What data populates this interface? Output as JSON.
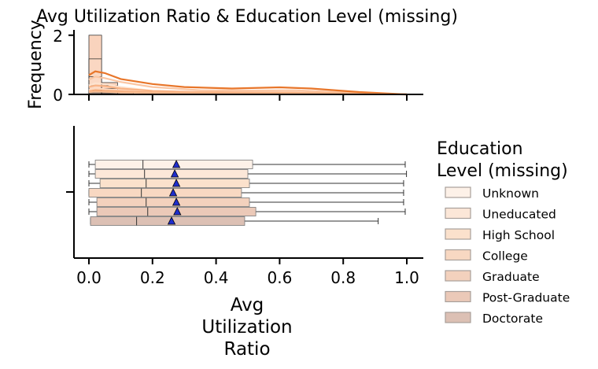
{
  "chart_data": {
    "type": "histogram+boxplot",
    "title": "Avg Utilization Ratio & Education Level (missing)",
    "histogram": {
      "ylabel": "Frequency",
      "ylim": [
        0,
        2.1
      ],
      "yticks": [
        "0",
        "2"
      ],
      "bins": [
        {
          "x0": 0.0,
          "x1": 0.04,
          "stack": [
            0.05,
            0.1,
            0.15,
            0.3,
            0.6,
            1.2,
            2.0
          ]
        },
        {
          "x0": 0.04,
          "x1": 0.09,
          "stack": [
            0.02,
            0.05,
            0.1,
            0.2,
            0.3,
            0.4
          ]
        },
        {
          "x0": 0.09,
          "x1": 0.14,
          "stack": [
            0.02,
            0.05,
            0.1,
            0.2
          ]
        }
      ],
      "kde": [
        {
          "name": "Unknown",
          "points": [
            [
              0.0,
              0.3
            ],
            [
              0.02,
              0.38
            ],
            [
              0.05,
              0.35
            ],
            [
              0.1,
              0.25
            ],
            [
              0.2,
              0.12
            ],
            [
              0.35,
              0.06
            ],
            [
              0.5,
              0.05
            ],
            [
              0.65,
              0.06
            ],
            [
              0.8,
              0.03
            ],
            [
              1.0,
              0.0
            ]
          ]
        },
        {
          "name": "Uneducated",
          "points": [
            [
              0.0,
              0.15
            ],
            [
              0.02,
              0.2
            ],
            [
              0.05,
              0.18
            ],
            [
              0.1,
              0.14
            ],
            [
              0.2,
              0.08
            ],
            [
              0.35,
              0.05
            ],
            [
              0.5,
              0.04
            ],
            [
              0.65,
              0.04
            ],
            [
              0.8,
              0.02
            ],
            [
              1.0,
              0.0
            ]
          ]
        },
        {
          "name": "High School",
          "points": [
            [
              0.0,
              0.5
            ],
            [
              0.02,
              0.6
            ],
            [
              0.05,
              0.55
            ],
            [
              0.1,
              0.42
            ],
            [
              0.2,
              0.25
            ],
            [
              0.35,
              0.14
            ],
            [
              0.5,
              0.13
            ],
            [
              0.65,
              0.14
            ],
            [
              0.8,
              0.07
            ],
            [
              1.0,
              0.0
            ]
          ]
        },
        {
          "name": "College",
          "points": [
            [
              0.0,
              0.25
            ],
            [
              0.02,
              0.3
            ],
            [
              0.05,
              0.28
            ],
            [
              0.1,
              0.2
            ],
            [
              0.2,
              0.12
            ],
            [
              0.35,
              0.08
            ],
            [
              0.5,
              0.07
            ],
            [
              0.65,
              0.07
            ],
            [
              0.8,
              0.04
            ],
            [
              1.0,
              0.0
            ]
          ]
        },
        {
          "name": "Graduate",
          "points": [
            [
              0.0,
              0.65
            ],
            [
              0.02,
              0.78
            ],
            [
              0.05,
              0.72
            ],
            [
              0.1,
              0.52
            ],
            [
              0.2,
              0.35
            ],
            [
              0.3,
              0.25
            ],
            [
              0.45,
              0.2
            ],
            [
              0.6,
              0.24
            ],
            [
              0.7,
              0.2
            ],
            [
              0.85,
              0.08
            ],
            [
              1.0,
              0.0
            ]
          ]
        },
        {
          "name": "Post-Graduate",
          "points": [
            [
              0.0,
              0.1
            ],
            [
              0.02,
              0.14
            ],
            [
              0.05,
              0.12
            ],
            [
              0.1,
              0.1
            ],
            [
              0.2,
              0.06
            ],
            [
              0.35,
              0.04
            ],
            [
              0.5,
              0.03
            ],
            [
              0.65,
              0.03
            ],
            [
              0.8,
              0.01
            ],
            [
              1.0,
              0.0
            ]
          ]
        },
        {
          "name": "Doctorate",
          "points": [
            [
              0.0,
              0.08
            ],
            [
              0.02,
              0.1
            ],
            [
              0.05,
              0.09
            ],
            [
              0.1,
              0.07
            ],
            [
              0.2,
              0.05
            ],
            [
              0.35,
              0.03
            ],
            [
              0.5,
              0.02
            ],
            [
              0.65,
              0.02
            ],
            [
              0.8,
              0.01
            ],
            [
              1.0,
              0.0
            ]
          ]
        }
      ]
    },
    "boxplot": {
      "xlabel": "Avg\nUtilization\nRatio",
      "xlim": [
        -0.05,
        1.05
      ],
      "xticks": [
        "0.0",
        "0.2",
        "0.4",
        "0.6",
        "0.8",
        "1.0"
      ],
      "series": [
        {
          "name": "Unknown",
          "whisker_low": 0.0,
          "q1": 0.02,
          "median": 0.17,
          "q3": 0.515,
          "whisker_high": 0.995,
          "mean": 0.275,
          "color": "#fdf1e8"
        },
        {
          "name": "Uneducated",
          "whisker_low": 0.0,
          "q1": 0.02,
          "median": 0.175,
          "q3": 0.5,
          "whisker_high": 0.999,
          "mean": 0.27,
          "color": "#fce7d8"
        },
        {
          "name": "High School",
          "whisker_low": 0.0,
          "q1": 0.035,
          "median": 0.18,
          "q3": 0.505,
          "whisker_high": 0.99,
          "mean": 0.275,
          "color": "#fbe1cc"
        },
        {
          "name": "College",
          "whisker_low": 0.0,
          "q1": 0.0,
          "median": 0.165,
          "q3": 0.48,
          "whisker_high": 0.99,
          "mean": 0.265,
          "color": "#f8d8c2"
        },
        {
          "name": "Graduate",
          "whisker_low": 0.0,
          "q1": 0.025,
          "median": 0.18,
          "q3": 0.505,
          "whisker_high": 0.99,
          "mean": 0.275,
          "color": "#f3d1bd"
        },
        {
          "name": "Post-Graduate",
          "whisker_low": 0.0,
          "q1": 0.025,
          "median": 0.185,
          "q3": 0.525,
          "whisker_high": 0.995,
          "mean": 0.278,
          "color": "#ebc9b8"
        },
        {
          "name": "Doctorate",
          "whisker_low": 0.005,
          "q1": 0.005,
          "median": 0.15,
          "q3": 0.49,
          "whisker_high": 0.91,
          "mean": 0.26,
          "color": "#dcc0b4"
        }
      ]
    },
    "legend": {
      "title": "Education\nLevel (missing)",
      "placement": "right",
      "entries": [
        "Unknown",
        "Uneducated",
        "High School",
        "College",
        "Graduate",
        "Post-Graduate",
        "Doctorate"
      ]
    },
    "kde_color": "#e8762a",
    "mean_marker_color": "#1f2dcc"
  }
}
